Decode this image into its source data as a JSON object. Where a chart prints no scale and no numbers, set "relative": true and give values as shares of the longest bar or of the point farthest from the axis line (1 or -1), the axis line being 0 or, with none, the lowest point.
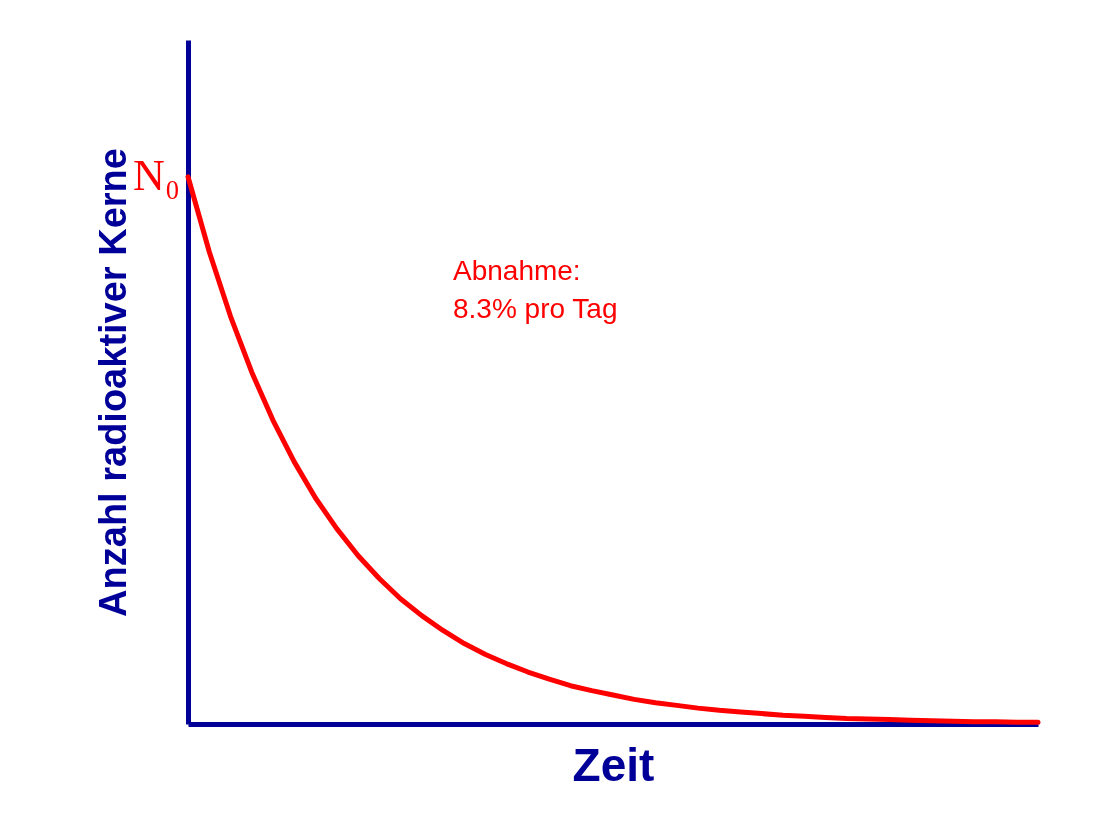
{
  "chart_data": {
    "type": "line",
    "xlabel": "Zeit",
    "ylabel": "Anzahl radioaktiver Kerne",
    "relative": true,
    "color": "#ff0000",
    "grid": false,
    "categories": [
      null,
      null,
      null,
      null,
      null,
      null,
      null,
      null,
      null,
      null,
      null,
      null,
      null,
      null,
      null,
      null,
      null,
      null,
      null,
      null,
      null,
      null,
      null,
      null,
      null,
      null,
      null,
      null,
      null,
      null,
      null,
      null,
      null,
      null,
      null,
      null,
      null,
      null,
      null,
      null,
      null
    ],
    "values": [
      1,
      0.863,
      0.745,
      0.643,
      0.555,
      0.479,
      0.413,
      0.357,
      0.308,
      0.266,
      0.229,
      0.198,
      0.171,
      0.147,
      0.127,
      0.11,
      0.095,
      0.082,
      0.07,
      0.061,
      0.053,
      0.045,
      0.039,
      0.034,
      0.029,
      0.025,
      0.022,
      0.019,
      0.016,
      0.014,
      0.012,
      0.01,
      0.009,
      0.008,
      0.007,
      0.006,
      0.005,
      0.004,
      0.004,
      0.003,
      0.003
    ],
    "annotations": [
      "N₀",
      "Abnahme:\n8.3% pro Tag"
    ]
  }
}
